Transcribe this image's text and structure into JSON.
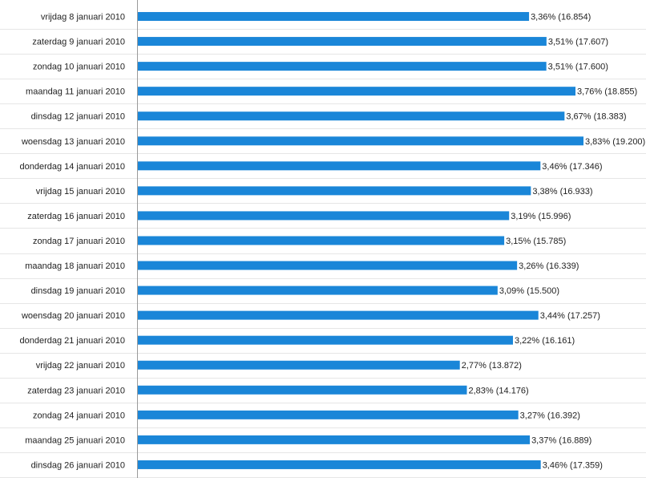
{
  "chart_data": {
    "type": "bar",
    "orientation": "horizontal",
    "categories": [
      "vrijdag 8 januari 2010",
      "zaterdag 9 januari 2010",
      "zondag 10 januari 2010",
      "maandag 11 januari 2010",
      "dinsdag 12 januari 2010",
      "woensdag 13 januari 2010",
      "donderdag 14 januari 2010",
      "vrijdag 15 januari 2010",
      "zaterdag 16 januari 2010",
      "zondag 17 januari 2010",
      "maandag 18 januari 2010",
      "dinsdag 19 januari 2010",
      "woensdag 20 januari 2010",
      "donderdag 21 januari 2010",
      "vrijdag 22 januari 2010",
      "zaterdag 23 januari 2010",
      "zondag 24 januari 2010",
      "maandag 25 januari 2010",
      "dinsdag 26 januari 2010"
    ],
    "values": [
      16854,
      17607,
      17600,
      18855,
      18383,
      19200,
      17346,
      16933,
      15996,
      15785,
      16339,
      15500,
      17257,
      16161,
      13872,
      14176,
      16392,
      16889,
      17359
    ],
    "data_labels": [
      "3,36% (16.854)",
      "3,51% (17.607)",
      "3,51% (17.600)",
      "3,76% (18.855)",
      "3,67% (18.383)",
      "3,83% (19.200)",
      "3,46% (17.346)",
      "3,38% (16.933)",
      "3,19% (15.996)",
      "3,15% (15.785)",
      "3,26% (16.339)",
      "3,09% (15.500)",
      "3,44% (17.257)",
      "3,22% (16.161)",
      "2,77% (13.872)",
      "2,83% (14.176)",
      "3,27% (16.392)",
      "3,37% (16.889)",
      "3,46% (17.359)"
    ],
    "xlim": [
      0,
      19200
    ],
    "bar_color": "#1a86d8",
    "grid": false
  }
}
